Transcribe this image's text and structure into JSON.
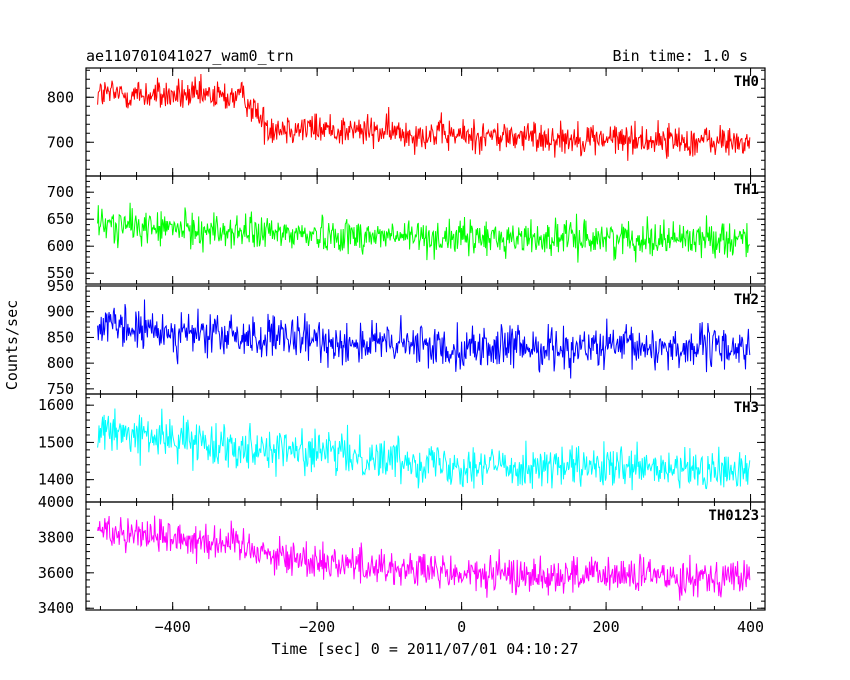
{
  "header": {
    "title": "ae110701041027_wam0_trn",
    "bin_time": "Bin time: 1.0 s"
  },
  "chart_data": {
    "type": "line",
    "xlabel": "Time [sec] 0 = 2011/07/01 04:10:27",
    "ylabel": "Counts/sec",
    "xlim": [
      -520,
      420
    ],
    "x_ticks": [
      -400,
      -200,
      0,
      200,
      400
    ],
    "x_tick_labels": [
      "−400",
      "−200",
      "0",
      "200",
      "400"
    ],
    "x_range_data": [
      -504,
      399
    ],
    "panels": [
      {
        "name": "TH0",
        "color": "#ff0000",
        "ylim": [
          625,
          865
        ],
        "y_ticks": [
          700,
          800
        ],
        "y_tick_labels": [
          "700",
          "800"
        ],
        "trend": [
          [
            -504,
            808
          ],
          [
            -300,
            800
          ],
          [
            -270,
            735
          ],
          [
            0,
            715
          ],
          [
            399,
            700
          ]
        ],
        "noise": 26
      },
      {
        "name": "TH1",
        "color": "#00ff00",
        "ylim": [
          530,
          730
        ],
        "y_ticks": [
          550,
          600,
          650,
          700
        ],
        "y_tick_labels": [
          "550",
          "600",
          "650",
          "700"
        ],
        "trend": [
          [
            -504,
            640
          ],
          [
            -300,
            625
          ],
          [
            0,
            615
          ],
          [
            399,
            615
          ]
        ],
        "noise": 23
      },
      {
        "name": "TH2",
        "color": "#0000ff",
        "ylim": [
          740,
          950
        ],
        "y_ticks": [
          750,
          800,
          850,
          900,
          950
        ],
        "y_tick_labels": [
          "750",
          "800",
          "850",
          "900",
          "950"
        ],
        "trend": [
          [
            -504,
            870
          ],
          [
            -300,
            850
          ],
          [
            0,
            830
          ],
          [
            399,
            830
          ]
        ],
        "noise": 30
      },
      {
        "name": "TH3",
        "color": "#00ffff",
        "ylim": [
          1340,
          1630
        ],
        "y_ticks": [
          1400,
          1500,
          1600
        ],
        "y_tick_labels": [
          "1400",
          "1500",
          "1600"
        ],
        "trend": [
          [
            -504,
            1530
          ],
          [
            -300,
            1490
          ],
          [
            0,
            1440
          ],
          [
            399,
            1420
          ]
        ],
        "noise": 40
      },
      {
        "name": "TH0123",
        "color": "#ff00ff",
        "ylim": [
          3390,
          4000
        ],
        "y_ticks": [
          3400,
          3600,
          3800,
          4000
        ],
        "y_tick_labels": [
          "3400",
          "3600",
          "3800",
          "4000"
        ],
        "trend": [
          [
            -504,
            3850
          ],
          [
            -300,
            3760
          ],
          [
            -250,
            3690
          ],
          [
            0,
            3590
          ],
          [
            399,
            3580
          ]
        ],
        "noise": 75
      }
    ]
  }
}
